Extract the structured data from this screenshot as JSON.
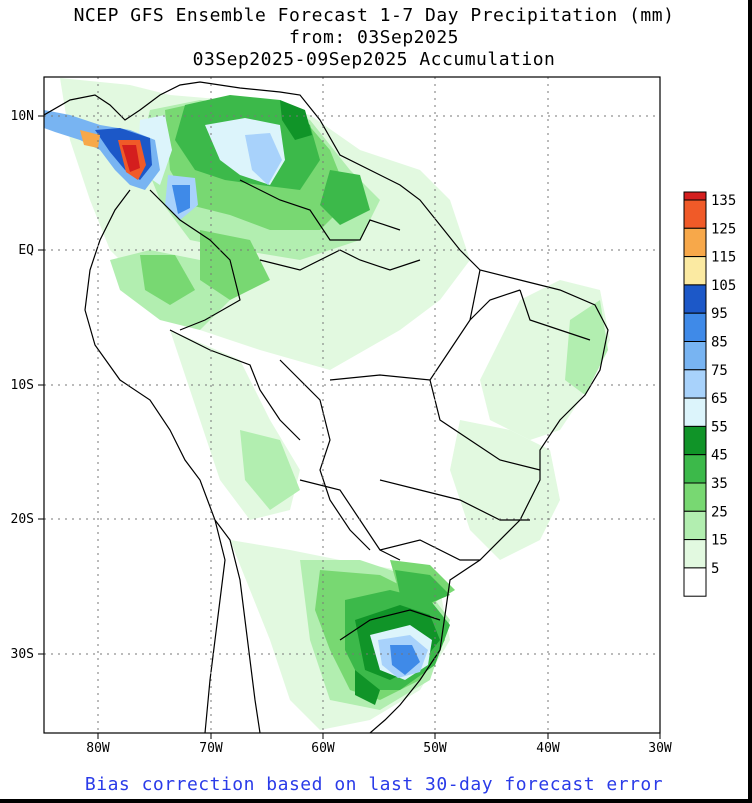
{
  "title": {
    "line1": "NCEP GFS Ensemble Forecast 1-7 Day Precipitation (mm)",
    "line2": "from: 03Sep2025",
    "line3": "03Sep2025-09Sep2025 Accumulation"
  },
  "footer": "Bias correction based on last 30-day forecast error",
  "axes": {
    "lat_labels": [
      "10N",
      "EQ",
      "10S",
      "20S",
      "30S"
    ],
    "lon_labels": [
      "80W",
      "70W",
      "60W",
      "50W",
      "40W",
      "30W"
    ]
  },
  "legend": {
    "labels": [
      "135",
      "125",
      "115",
      "105",
      "95",
      "85",
      "75",
      "65",
      "55",
      "45",
      "35",
      "25",
      "15",
      "5"
    ],
    "colors": [
      "#d41e1e",
      "#f05a28",
      "#f7a84a",
      "#fbeaa2",
      "#1c58c8",
      "#3f8ae8",
      "#78b4f2",
      "#a8d2fb",
      "#dcf4fb",
      "#109428",
      "#3cb94a",
      "#78d872",
      "#b2eeb0",
      "#e2f9e0",
      "#ffffff"
    ]
  }
}
